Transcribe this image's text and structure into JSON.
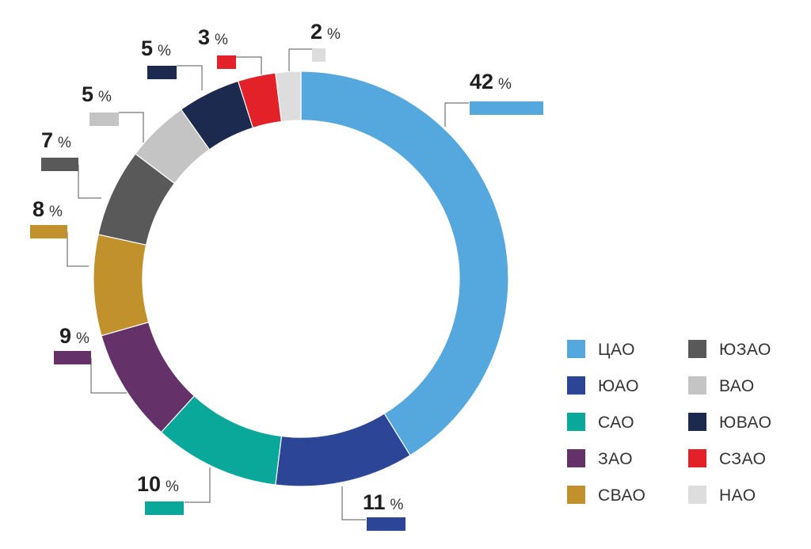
{
  "chart_data": {
    "type": "pie",
    "style": "donut",
    "start_angle_deg": 0,
    "direction": "clockwise",
    "legend_position": "bottom-right",
    "legend_columns": 2,
    "percent_sign": "%",
    "slices": [
      {
        "label": "ЦАО",
        "value": 42,
        "value_label": "42",
        "color": "#55a8de"
      },
      {
        "label": "ЮАО",
        "value": 11,
        "value_label": "11",
        "color": "#2c4597"
      },
      {
        "label": "САО",
        "value": 10,
        "value_label": "10",
        "color": "#0aa89b"
      },
      {
        "label": "ЗАО",
        "value": 9,
        "value_label": "9",
        "color": "#643269"
      },
      {
        "label": "СВАО",
        "value": 8,
        "value_label": "8",
        "color": "#c1912c"
      },
      {
        "label": "ЮЗАО",
        "value": 7,
        "value_label": "7",
        "color": "#595959"
      },
      {
        "label": "ВАО",
        "value": 5,
        "value_label": "5",
        "color": "#c4c4c4"
      },
      {
        "label": "ЮВАО",
        "value": 5,
        "value_label": "5",
        "color": "#1b2a4e"
      },
      {
        "label": "СЗАО",
        "value": 3,
        "value_label": "3",
        "color": "#e32128"
      },
      {
        "label": "НАО",
        "value": 2,
        "value_label": "2",
        "color": "#dddddd"
      }
    ]
  }
}
